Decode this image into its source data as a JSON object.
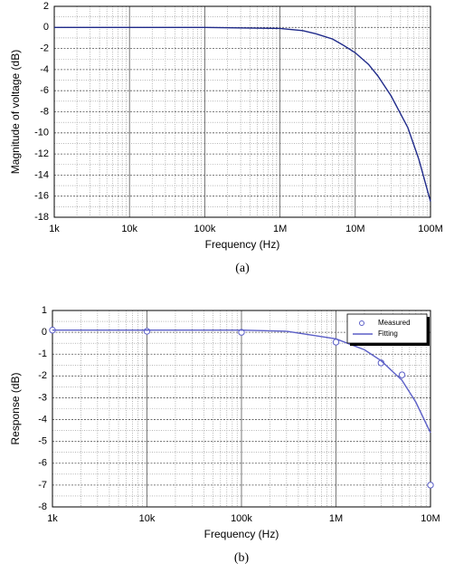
{
  "chart_data": [
    {
      "type": "line",
      "caption": "(a)",
      "xlabel": "Frequency (Hz)",
      "ylabel": "Magnitude of voltage (dB)",
      "xscale": "log",
      "grid": true,
      "minor_grid": true,
      "xlim": [
        1000,
        100000000
      ],
      "xticks": [
        {
          "value": 1000,
          "label": "1k"
        },
        {
          "value": 10000,
          "label": "10k"
        },
        {
          "value": 100000,
          "label": "100k"
        },
        {
          "value": 1000000,
          "label": "1M"
        },
        {
          "value": 10000000,
          "label": "10M"
        },
        {
          "value": 100000000,
          "label": "100M"
        }
      ],
      "ylim": [
        -18,
        2
      ],
      "yticks": [
        -18,
        -16,
        -14,
        -12,
        -10,
        -8,
        -6,
        -4,
        -2,
        0,
        2
      ],
      "series": [
        {
          "color": "#1f2a8a",
          "draw": "line",
          "x": [
            1000,
            10000,
            100000,
            1000000,
            2000000,
            3000000,
            5000000,
            7000000,
            10000000,
            15000000,
            20000000,
            30000000,
            50000000,
            70000000,
            100000000
          ],
          "values": [
            0,
            0,
            0,
            -0.1,
            -0.3,
            -0.6,
            -1.1,
            -1.7,
            -2.4,
            -3.5,
            -4.6,
            -6.5,
            -9.5,
            -12.5,
            -16.5
          ]
        }
      ]
    },
    {
      "type": "line",
      "caption": "(b)",
      "xlabel": "Frequency (Hz)",
      "ylabel": "Response (dB)",
      "xscale": "log",
      "grid": true,
      "minor_grid": true,
      "legend": "top-right",
      "xlim": [
        1000,
        10000000
      ],
      "xticks": [
        {
          "value": 1000,
          "label": "1k"
        },
        {
          "value": 10000,
          "label": "10k"
        },
        {
          "value": 100000,
          "label": "100k"
        },
        {
          "value": 1000000,
          "label": "1M"
        },
        {
          "value": 10000000,
          "label": "10M"
        }
      ],
      "ylim": [
        -8,
        1
      ],
      "yticks": [
        -8,
        -7,
        -6,
        -5,
        -4,
        -3,
        -2,
        -1,
        0,
        1
      ],
      "series": [
        {
          "name": "Measured",
          "color": "#5b5fc7",
          "draw": "markers",
          "x": [
            1000,
            10000,
            100000,
            1000000,
            3000000,
            5000000,
            10000000
          ],
          "values": [
            0.1,
            0.05,
            0,
            -0.45,
            -1.4,
            -1.95,
            -7
          ]
        },
        {
          "name": "Fitting",
          "color": "#5b5fc7",
          "draw": "line",
          "x": [
            1000,
            10000,
            100000,
            300000,
            1000000,
            2000000,
            3000000,
            5000000,
            7000000,
            10000000
          ],
          "values": [
            0.1,
            0.1,
            0.1,
            0.05,
            -0.3,
            -0.8,
            -1.3,
            -2.2,
            -3.2,
            -4.6
          ]
        }
      ]
    }
  ]
}
